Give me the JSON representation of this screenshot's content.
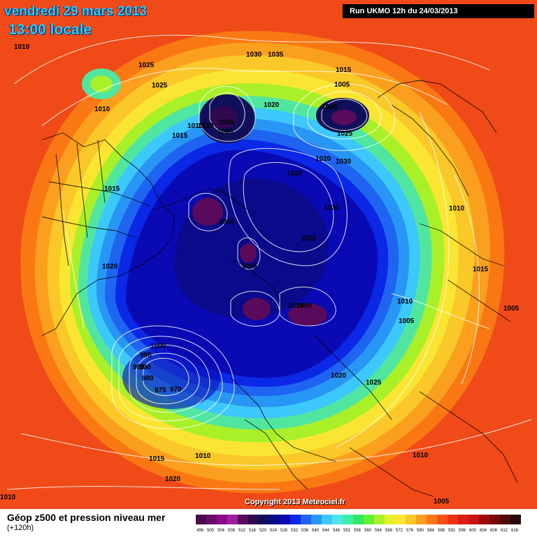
{
  "header": {
    "date": "vendredi 29 mars 2013",
    "time": "13:00 locale",
    "run": "Run UKMO 12h du 24/03/2013"
  },
  "copyright": "Copyright 2013 Meteociel.fr",
  "footer": {
    "title": "Géop z500 et pression niveau mer",
    "subtitle": "(+120h)"
  },
  "legend": {
    "values": [
      "496",
      "500",
      "504",
      "508",
      "512",
      "516",
      "520",
      "524",
      "528",
      "532",
      "536",
      "540",
      "544",
      "548",
      "552",
      "556",
      "560",
      "564",
      "568",
      "572",
      "576",
      "580",
      "584",
      "588",
      "592",
      "596",
      "600",
      "604",
      "608",
      "612",
      "616"
    ],
    "colors": [
      "#4b0a4b",
      "#6a0a6a",
      "#8a0a8a",
      "#a01ea0",
      "#5a0a5a",
      "#300a50",
      "#10105a",
      "#0a0a8a",
      "#0a0ab4",
      "#0a28e6",
      "#1e64f0",
      "#2896f5",
      "#3cc8fa",
      "#50e6e6",
      "#3cf0aa",
      "#32e664",
      "#64f032",
      "#aaf028",
      "#e6f028",
      "#fae632",
      "#fac828",
      "#faa01e",
      "#fa7814",
      "#fa5014",
      "#f03214",
      "#dc1e14",
      "#c81414",
      "#a00a0a",
      "#780a0a",
      "#500a0a",
      "#280a0a"
    ]
  },
  "isobars": [
    {
      "label": "1010"
    },
    {
      "label": "1025"
    },
    {
      "label": "1025"
    },
    {
      "label": "1010"
    },
    {
      "label": "1030"
    },
    {
      "label": "1035"
    },
    {
      "label": "1015"
    },
    {
      "label": "1010"
    },
    {
      "label": "1020"
    },
    {
      "label": "1005"
    },
    {
      "label": "1010"
    },
    {
      "label": "1000"
    },
    {
      "label": "1015"
    },
    {
      "label": "1005"
    },
    {
      "label": "1000"
    },
    {
      "label": "1025"
    },
    {
      "label": "1020"
    },
    {
      "label": "1030"
    },
    {
      "label": "1020"
    },
    {
      "label": "1015"
    },
    {
      "label": "1030"
    },
    {
      "label": "1010"
    },
    {
      "label": "1035"
    },
    {
      "label": "1025"
    },
    {
      "label": "1020"
    },
    {
      "label": "1010"
    },
    {
      "label": "1015"
    },
    {
      "label": "1010"
    },
    {
      "label": "1005"
    },
    {
      "label": "1010"
    },
    {
      "label": "1005"
    },
    {
      "label": "1005"
    },
    {
      "label": "1000"
    },
    {
      "label": "995"
    },
    {
      "label": "990"
    },
    {
      "label": "985"
    },
    {
      "label": "980"
    },
    {
      "label": "975"
    },
    {
      "label": "970"
    },
    {
      "label": "1020"
    },
    {
      "label": "1025"
    },
    {
      "label": "1015"
    },
    {
      "label": "1010"
    },
    {
      "label": "1010"
    },
    {
      "label": "1020"
    },
    {
      "label": "1010"
    },
    {
      "label": "1005"
    }
  ]
}
